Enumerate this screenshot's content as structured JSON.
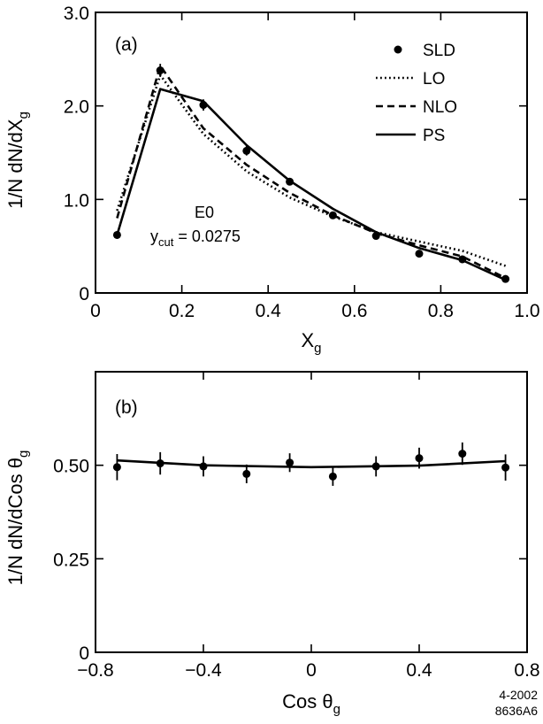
{
  "footer": {
    "line1": "4-2002",
    "line2": "8636A6"
  },
  "chart_data": [
    {
      "type": "line",
      "panel": "(a)",
      "ylabel": {
        "main": "1/N dN/dX",
        "sub": "g"
      },
      "xlabel": {
        "main": "X",
        "sub": "g"
      },
      "xlim": [
        0,
        1.0
      ],
      "ylim": [
        0,
        3.0
      ],
      "xticks": [
        0,
        0.2,
        0.4,
        0.6,
        0.8,
        1.0
      ],
      "xtick_labels": [
        "0",
        "0.2",
        "0.4",
        "0.6",
        "0.8",
        "1.0"
      ],
      "yticks": [
        0,
        1.0,
        2.0,
        3.0
      ],
      "ytick_labels": [
        "0",
        "1.0",
        "2.0",
        "3.0"
      ],
      "annotation": {
        "line1": "E0",
        "ycut_main": "y",
        "ycut_sub": "cut",
        "ycut_value": " = 0.0275"
      },
      "legend": [
        {
          "label": "SLD",
          "style": "marker"
        },
        {
          "label": "LO",
          "style": "dotted"
        },
        {
          "label": "NLO",
          "style": "dashed"
        },
        {
          "label": "PS",
          "style": "solid"
        }
      ],
      "data_points": {
        "name": "SLD",
        "x": [
          0.05,
          0.15,
          0.25,
          0.35,
          0.45,
          0.55,
          0.65,
          0.75,
          0.85,
          0.95
        ],
        "y": [
          0.62,
          2.38,
          2.01,
          1.52,
          1.19,
          0.83,
          0.61,
          0.42,
          0.36,
          0.15
        ],
        "err": [
          0.04,
          0.07,
          0.06,
          0.05,
          0.04,
          0.03,
          0.03,
          0.02,
          0.02,
          0.01
        ]
      },
      "series": [
        {
          "name": "LO",
          "style": "dotted",
          "x": [
            0.05,
            0.15,
            0.25,
            0.35,
            0.45,
            0.55,
            0.65,
            0.75,
            0.85,
            0.95
          ],
          "y": [
            0.88,
            2.33,
            1.7,
            1.3,
            1.02,
            0.82,
            0.65,
            0.55,
            0.45,
            0.29
          ]
        },
        {
          "name": "NLO",
          "style": "dashed",
          "x": [
            0.05,
            0.15,
            0.25,
            0.35,
            0.45,
            0.55,
            0.65,
            0.75,
            0.85,
            0.95
          ],
          "y": [
            0.8,
            2.43,
            1.76,
            1.37,
            1.07,
            0.83,
            0.64,
            0.51,
            0.39,
            0.16
          ]
        },
        {
          "name": "PS",
          "style": "solid",
          "x": [
            0.05,
            0.15,
            0.25,
            0.35,
            0.45,
            0.55,
            0.65,
            0.75,
            0.85,
            0.95
          ],
          "y": [
            0.62,
            2.18,
            2.05,
            1.58,
            1.2,
            0.9,
            0.65,
            0.48,
            0.35,
            0.14
          ]
        }
      ]
    },
    {
      "type": "line",
      "panel": "(b)",
      "ylabel": {
        "main": "1/N dN/dCos θ",
        "sub": "g"
      },
      "xlabel": {
        "main": "Cos θ",
        "sub": "g"
      },
      "xlim": [
        -0.8,
        0.8
      ],
      "ylim": [
        0,
        0.75
      ],
      "xticks": [
        -0.8,
        -0.4,
        0,
        0.4,
        0.8
      ],
      "xtick_labels": [
        "−0.8",
        "−0.4",
        "0",
        "0.4",
        "0.8"
      ],
      "yticks": [
        0,
        0.25,
        0.5
      ],
      "ytick_labels": [
        "0",
        "0.25",
        "0.50"
      ],
      "data_points": {
        "name": "SLD",
        "x": [
          -0.72,
          -0.56,
          -0.4,
          -0.24,
          -0.08,
          0.08,
          0.24,
          0.4,
          0.56,
          0.72
        ],
        "y": [
          0.495,
          0.505,
          0.497,
          0.477,
          0.507,
          0.47,
          0.497,
          0.519,
          0.531,
          0.494
        ],
        "err": [
          0.035,
          0.03,
          0.027,
          0.025,
          0.025,
          0.025,
          0.027,
          0.028,
          0.03,
          0.035
        ]
      },
      "series": [
        {
          "name": "PS",
          "style": "solid",
          "x": [
            -0.72,
            -0.4,
            0.0,
            0.4,
            0.72
          ],
          "y": [
            0.513,
            0.5,
            0.495,
            0.499,
            0.511
          ]
        }
      ]
    }
  ]
}
